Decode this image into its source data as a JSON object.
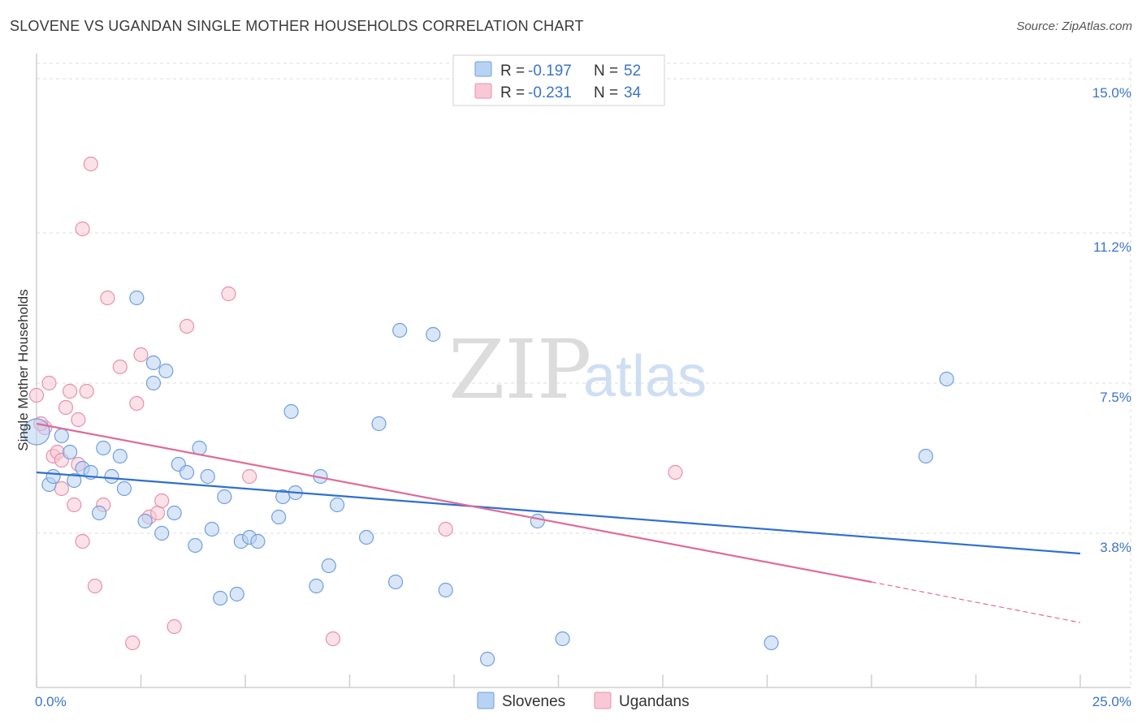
{
  "title": "SLOVENE VS UGANDAN SINGLE MOTHER HOUSEHOLDS CORRELATION CHART",
  "source": "Source: ZipAtlas.com",
  "watermark": {
    "zip": "ZIP",
    "atlas": "atlas"
  },
  "legend": {
    "rows": [
      {
        "r_label": "R = ",
        "r_value": "-0.197",
        "n_label": "N = ",
        "n_value": "52"
      },
      {
        "r_label": "R = ",
        "r_value": "-0.231",
        "n_label": "N = ",
        "n_value": "34"
      }
    ]
  },
  "colors": {
    "slovenes_fill": "#b8d2f3",
    "slovenes_stroke": "#6f9fdc",
    "slovenes_line": "#2f6fd0",
    "ugandans_fill": "#f8c8d6",
    "ugandans_stroke": "#e890ab",
    "ugandans_line": "#e06b98",
    "tick_text": "#3b74c9",
    "grid": "#dddddd"
  },
  "chart_data": {
    "type": "scatter",
    "title": "SLOVENE VS UGANDAN SINGLE MOTHER HOUSEHOLDS CORRELATION CHART",
    "xlabel": "",
    "ylabel": "Single Mother Households",
    "xlim": [
      0,
      25
    ],
    "ylim": [
      0,
      15.5
    ],
    "x_tick_labels": [
      "0.0%",
      "25.0%"
    ],
    "y_ticks": [
      3.8,
      7.5,
      11.2,
      15.0
    ],
    "y_tick_labels": [
      "3.8%",
      "7.5%",
      "11.2%",
      "15.0%"
    ],
    "grid": true,
    "legend_placement": "top-center",
    "series": [
      {
        "name": "Slovenes",
        "r": -0.197,
        "n": 52,
        "trend": {
          "x": [
            0,
            25
          ],
          "y": [
            5.3,
            3.3
          ]
        },
        "points": [
          [
            0.0,
            6.3
          ],
          [
            0.3,
            5.0
          ],
          [
            0.4,
            5.2
          ],
          [
            0.6,
            6.2
          ],
          [
            0.8,
            5.8
          ],
          [
            0.9,
            5.1
          ],
          [
            1.1,
            5.4
          ],
          [
            1.3,
            5.3
          ],
          [
            1.5,
            4.3
          ],
          [
            1.6,
            5.9
          ],
          [
            1.8,
            5.2
          ],
          [
            2.0,
            5.7
          ],
          [
            2.1,
            4.9
          ],
          [
            2.4,
            9.6
          ],
          [
            2.6,
            4.1
          ],
          [
            2.8,
            7.5
          ],
          [
            2.8,
            8.0
          ],
          [
            3.0,
            3.8
          ],
          [
            3.1,
            7.8
          ],
          [
            3.3,
            4.3
          ],
          [
            3.4,
            5.5
          ],
          [
            3.6,
            5.3
          ],
          [
            3.8,
            3.5
          ],
          [
            3.9,
            5.9
          ],
          [
            4.1,
            5.2
          ],
          [
            4.2,
            3.9
          ],
          [
            4.4,
            2.2
          ],
          [
            4.5,
            4.7
          ],
          [
            4.8,
            2.3
          ],
          [
            4.9,
            3.6
          ],
          [
            5.1,
            3.7
          ],
          [
            5.3,
            3.6
          ],
          [
            5.8,
            4.2
          ],
          [
            5.9,
            4.7
          ],
          [
            6.1,
            6.8
          ],
          [
            6.2,
            4.8
          ],
          [
            6.7,
            2.5
          ],
          [
            6.8,
            5.2
          ],
          [
            7.0,
            3.0
          ],
          [
            7.2,
            4.5
          ],
          [
            7.9,
            3.7
          ],
          [
            8.2,
            6.5
          ],
          [
            8.6,
            2.6
          ],
          [
            8.7,
            8.8
          ],
          [
            9.5,
            8.7
          ],
          [
            9.8,
            2.4
          ],
          [
            10.8,
            0.7
          ],
          [
            12.0,
            4.1
          ],
          [
            12.6,
            1.2
          ],
          [
            17.6,
            1.1
          ],
          [
            21.3,
            5.7
          ],
          [
            21.8,
            7.6
          ]
        ]
      },
      {
        "name": "Ugandans",
        "r": -0.231,
        "n": 34,
        "trend": {
          "x": [
            0,
            20
          ],
          "y": [
            6.5,
            2.6
          ]
        },
        "trend_dashed": {
          "x": [
            20,
            25
          ],
          "y": [
            2.6,
            1.6
          ]
        },
        "points": [
          [
            0.0,
            7.2
          ],
          [
            0.2,
            6.4
          ],
          [
            0.3,
            7.5
          ],
          [
            0.4,
            5.7
          ],
          [
            0.5,
            5.8
          ],
          [
            0.6,
            5.6
          ],
          [
            0.6,
            4.9
          ],
          [
            0.7,
            6.9
          ],
          [
            0.8,
            7.3
          ],
          [
            0.9,
            4.5
          ],
          [
            1.0,
            6.6
          ],
          [
            1.0,
            5.5
          ],
          [
            1.1,
            11.3
          ],
          [
            1.1,
            3.6
          ],
          [
            1.2,
            7.3
          ],
          [
            1.3,
            12.9
          ],
          [
            1.4,
            2.5
          ],
          [
            1.6,
            4.5
          ],
          [
            1.7,
            9.6
          ],
          [
            2.0,
            7.9
          ],
          [
            2.3,
            1.1
          ],
          [
            2.4,
            7.0
          ],
          [
            2.5,
            8.2
          ],
          [
            2.7,
            4.2
          ],
          [
            2.9,
            4.3
          ],
          [
            3.0,
            4.6
          ],
          [
            3.3,
            1.5
          ],
          [
            3.6,
            8.9
          ],
          [
            4.6,
            9.7
          ],
          [
            5.1,
            5.2
          ],
          [
            7.1,
            1.2
          ],
          [
            9.8,
            3.9
          ],
          [
            15.3,
            5.3
          ],
          [
            0.1,
            6.5
          ]
        ]
      }
    ]
  },
  "bottom_legend": {
    "items": [
      "Slovenes",
      "Ugandans"
    ]
  }
}
